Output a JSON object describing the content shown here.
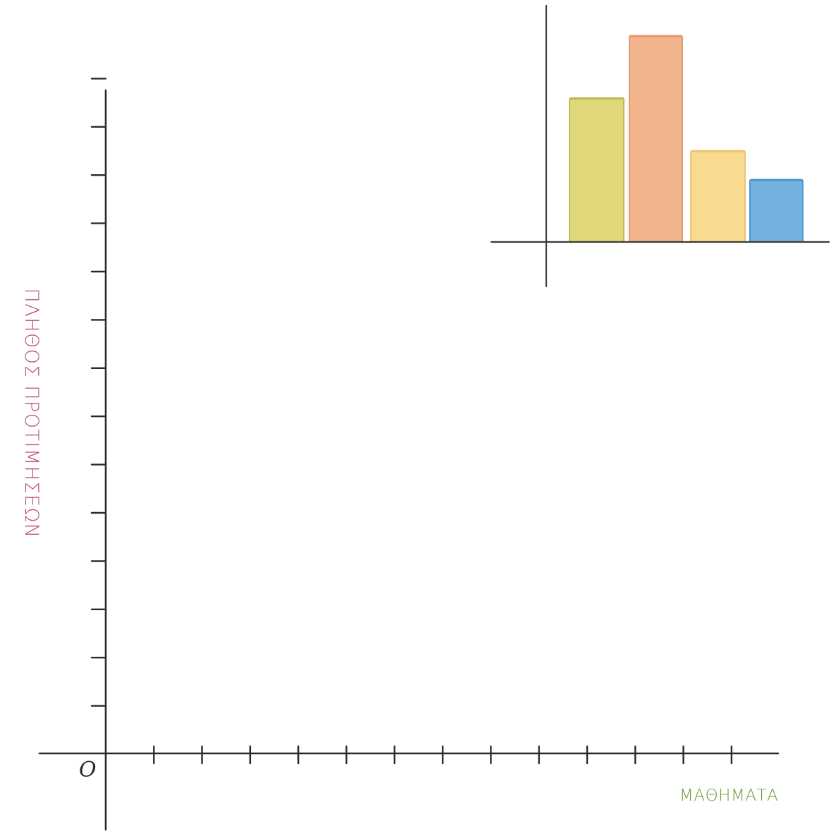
{
  "chart_data": {
    "type": "bar",
    "origin_label": "O",
    "ylabel": "ΠΛΗΘΟΣ ΠΡΟΤΙΜΗΣΕΩΝ",
    "xlabel": "ΜΑΘΗΜΑΤΑ",
    "ylabel_color": "#c04a86",
    "xlabel_color": "#6f9a3a",
    "y_tick_count": 14,
    "x_tick_count": 13,
    "inset": {
      "type": "bar",
      "categories": [
        "",
        "",
        "",
        ""
      ],
      "values": [
        6,
        8.6,
        3.8,
        2.6
      ],
      "colors": [
        "#dfd77a",
        "#f2b48c",
        "#f8da90",
        "#74b1de"
      ],
      "edge_colors": [
        "#bfb855",
        "#e69a6c",
        "#ecc56e",
        "#4f96cc"
      ]
    }
  }
}
